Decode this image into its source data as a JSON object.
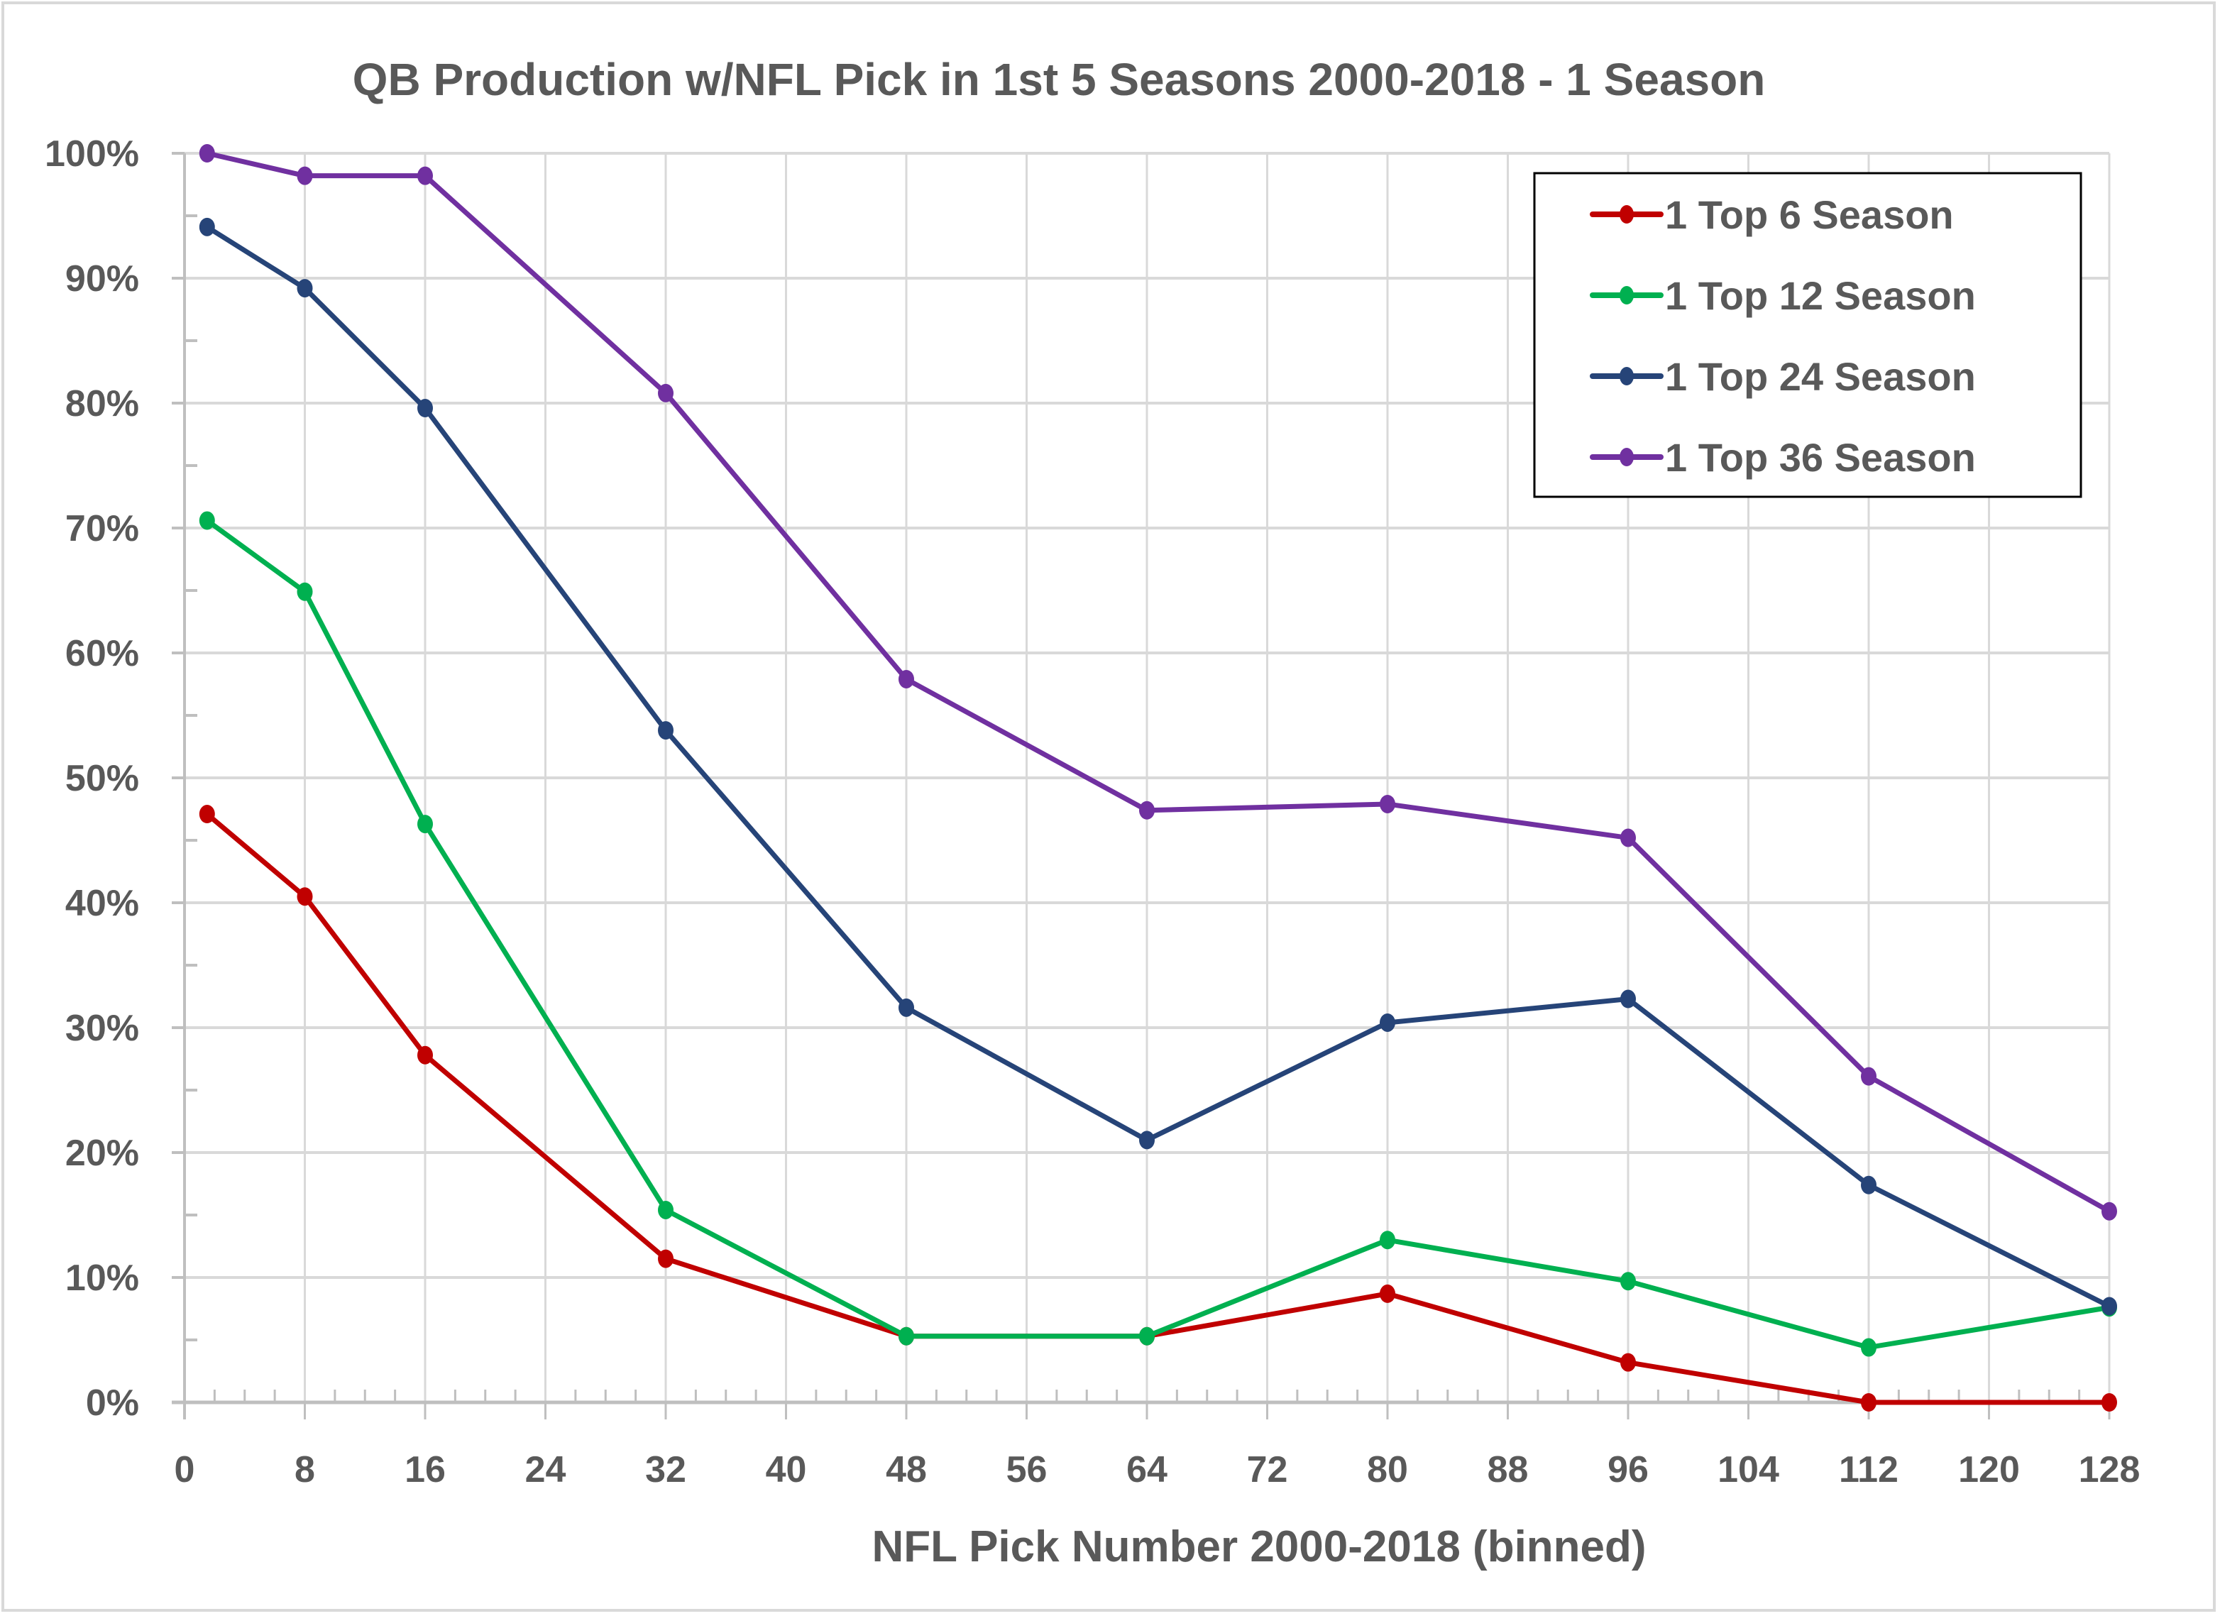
{
  "chart_data": {
    "type": "line",
    "title": "QB Production w/NFL Pick in 1st 5 Seasons 2000-2018 - 1 Season",
    "xlabel": "NFL Pick Number 2000-2018 (binned)",
    "ylabel": "",
    "xlim": [
      0,
      128
    ],
    "ylim": [
      0,
      100
    ],
    "x_ticks": [
      0,
      8,
      16,
      24,
      32,
      40,
      48,
      56,
      64,
      72,
      80,
      88,
      96,
      104,
      112,
      120,
      128
    ],
    "x_tick_labels": [
      "0",
      "8",
      "16",
      "24",
      "32",
      "40",
      "48",
      "56",
      "64",
      "72",
      "80",
      "88",
      "96",
      "104",
      "112",
      "120",
      "128"
    ],
    "y_ticks": [
      0,
      10,
      20,
      30,
      40,
      50,
      60,
      70,
      80,
      90,
      100
    ],
    "y_tick_labels": [
      "0%",
      "10%",
      "20%",
      "30%",
      "40%",
      "50%",
      "60%",
      "70%",
      "80%",
      "90%",
      "100%"
    ],
    "grid": true,
    "legend_position": "top-right",
    "x": [
      1.5,
      8,
      16,
      32,
      48,
      64,
      80,
      96,
      112,
      128
    ],
    "series": [
      {
        "name": "1 Top 6 Season",
        "color": "#c00000",
        "values": [
          47.1,
          40.5,
          27.8,
          11.5,
          5.3,
          5.3,
          8.7,
          3.2,
          0.0,
          0.0
        ]
      },
      {
        "name": "1 Top 12 Season",
        "color": "#00b050",
        "values": [
          70.6,
          64.9,
          46.3,
          15.4,
          5.3,
          5.3,
          13.0,
          9.7,
          4.4,
          7.6
        ]
      },
      {
        "name": "1 Top 24 Season",
        "color": "#264478",
        "values": [
          94.1,
          89.2,
          79.6,
          53.8,
          31.6,
          21.0,
          30.4,
          32.3,
          17.4,
          7.7
        ]
      },
      {
        "name": "1 Top 36 Season",
        "color": "#7030a0",
        "values": [
          100.0,
          98.2,
          98.2,
          80.8,
          57.9,
          47.4,
          47.9,
          45.2,
          26.1,
          15.3
        ]
      }
    ]
  }
}
